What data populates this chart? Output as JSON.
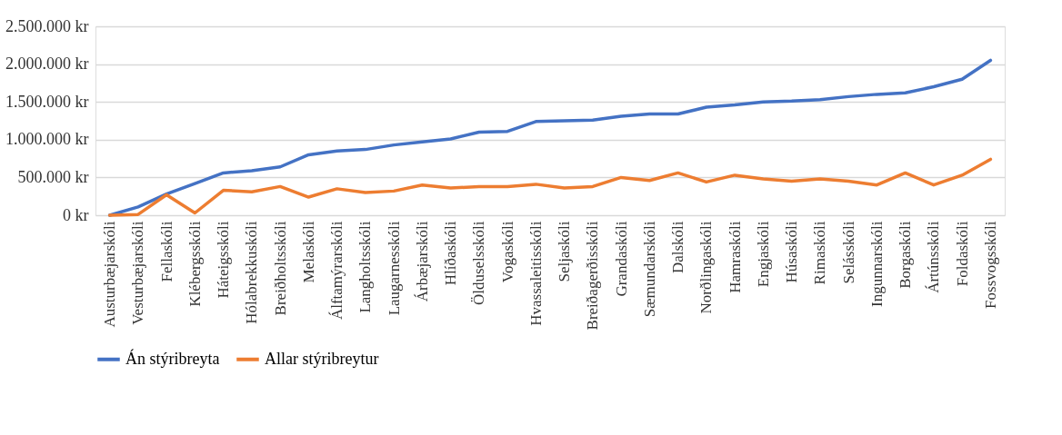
{
  "chart_data": {
    "type": "line",
    "categories": [
      "Austurbæjarskóli",
      "Vesturbæjarskóli",
      "Fellaskóli",
      "Klébergsskóli",
      "Háteigsskóli",
      "Hólabrekkuskóli",
      "Breiðholtsskóli",
      "Melaskóli",
      "Álftamýrarskóli",
      "Langholtsskóli",
      "Laugarnesskóli",
      "Árbæjarskóli",
      "Hlíðaskóli",
      "Ölduselsskóli",
      "Vogaskóli",
      "Hvassaleitisskóli",
      "Seljaskóli",
      "Breiðagerðisskóli",
      "Grandaskóli",
      "Sæmundarskóli",
      "Dalskóli",
      "Norðlingaskóli",
      "Hamraskóli",
      "Engjaskóli",
      "Húsaskóli",
      "Rimaskóli",
      "Selásskóli",
      "Ingunnarskóli",
      "Borgaskóli",
      "Ártúnsskóli",
      "Foldaskóli",
      "Fossvogsskóli"
    ],
    "series": [
      {
        "name": "Án stýribreyta",
        "color": "#4472c4",
        "values": [
          0,
          110000,
          280000,
          420000,
          560000,
          590000,
          640000,
          800000,
          850000,
          870000,
          930000,
          970000,
          1010000,
          1100000,
          1110000,
          1240000,
          1250000,
          1260000,
          1310000,
          1340000,
          1340000,
          1430000,
          1460000,
          1500000,
          1510000,
          1530000,
          1570000,
          1600000,
          1620000,
          1700000,
          1800000,
          2050000
        ]
      },
      {
        "name": "Allar stýribreytur",
        "color": "#ed7d31",
        "values": [
          0,
          10000,
          270000,
          30000,
          330000,
          310000,
          380000,
          240000,
          350000,
          300000,
          320000,
          400000,
          360000,
          380000,
          380000,
          410000,
          360000,
          380000,
          500000,
          460000,
          560000,
          440000,
          530000,
          480000,
          450000,
          480000,
          450000,
          400000,
          560000,
          400000,
          530000,
          740000
        ]
      }
    ],
    "ylim": [
      0,
      2500000
    ],
    "yticks": [
      {
        "value": 0,
        "label": "0 kr"
      },
      {
        "value": 500000,
        "label": "500.000 kr"
      },
      {
        "value": 1000000,
        "label": "1.000.000 kr"
      },
      {
        "value": 1500000,
        "label": "1.500.000 kr"
      },
      {
        "value": 2000000,
        "label": "2.000.000 kr"
      },
      {
        "value": 2500000,
        "label": "2.500.000 kr"
      }
    ],
    "grid": "y",
    "legend": "bottom",
    "marker": "none",
    "line_style": "solid"
  }
}
